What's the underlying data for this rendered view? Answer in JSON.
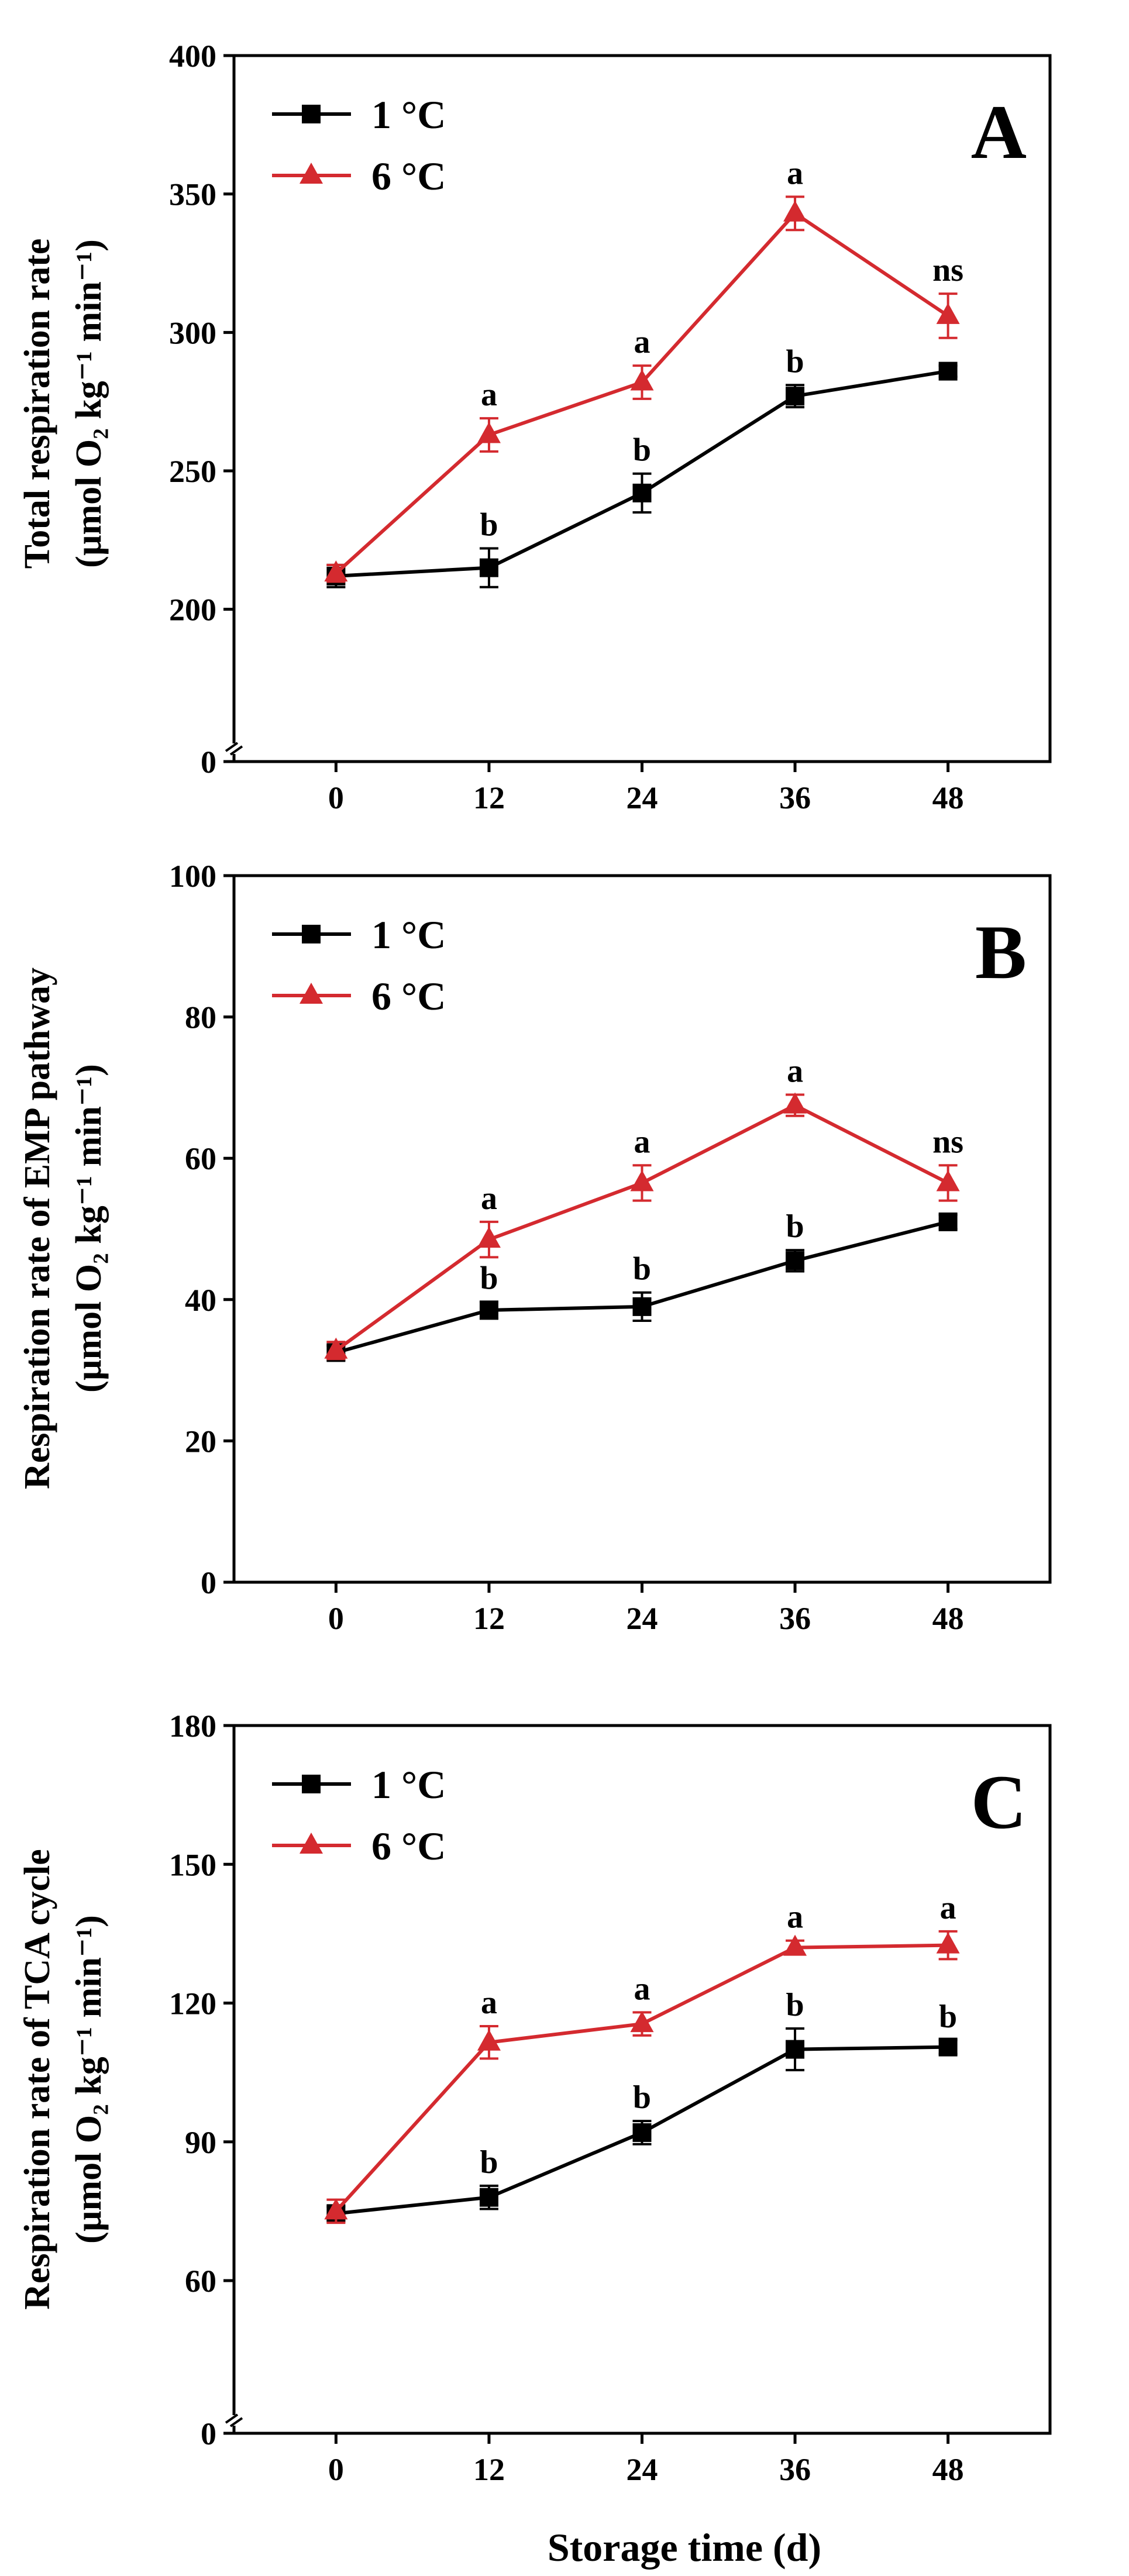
{
  "xlabel": "Storage time (d)",
  "colors": {
    "series_1C": "#000000",
    "series_6C": "#d42a2f",
    "axis": "#000000"
  },
  "chart_data": [
    {
      "type": "line",
      "panel": "A",
      "ylabel_line1": "Total respiration rate",
      "ylabel_line2": "(µmol O₂ kg⁻¹ min⁻¹)",
      "x": [
        0,
        12,
        24,
        36,
        48
      ],
      "x_ticks": [
        "0",
        "12",
        "24",
        "36",
        "48"
      ],
      "ylim": [
        0,
        400
      ],
      "y_ticks": [
        "0",
        "200",
        "250",
        "300",
        "350",
        "400"
      ],
      "y_tick_values": [
        0,
        200,
        250,
        300,
        350,
        400
      ],
      "axis_break": true,
      "series": [
        {
          "name": "1 °C",
          "marker": "square",
          "values": [
            212,
            215,
            242,
            277,
            286
          ],
          "errors": [
            4,
            7,
            7,
            4,
            2
          ]
        },
        {
          "name": "6 °C",
          "marker": "triangle",
          "values": [
            213,
            263,
            282,
            343,
            306
          ],
          "errors": [
            3,
            6,
            6,
            6,
            8
          ]
        }
      ],
      "annotations": [
        {
          "x": 12,
          "series": "1 °C",
          "text": "b"
        },
        {
          "x": 24,
          "series": "1 °C",
          "text": "b"
        },
        {
          "x": 36,
          "series": "1 °C",
          "text": "b"
        },
        {
          "x": 12,
          "series": "6 °C",
          "text": "a"
        },
        {
          "x": 24,
          "series": "6 °C",
          "text": "a"
        },
        {
          "x": 36,
          "series": "6 °C",
          "text": "a"
        },
        {
          "x": 48,
          "series": "6 °C",
          "text": "ns"
        }
      ]
    },
    {
      "type": "line",
      "panel": "B",
      "ylabel_line1": "Respiration rate of EMP pathway",
      "ylabel_line2": "(µmol O₂ kg⁻¹ min⁻¹)",
      "x": [
        0,
        12,
        24,
        36,
        48
      ],
      "x_ticks": [
        "0",
        "12",
        "24",
        "36",
        "48"
      ],
      "ylim": [
        0,
        100
      ],
      "y_ticks": [
        "0",
        "20",
        "40",
        "60",
        "80",
        "100"
      ],
      "y_tick_values": [
        0,
        20,
        40,
        60,
        80,
        100
      ],
      "axis_break": false,
      "series": [
        {
          "name": "1 °C",
          "marker": "square",
          "values": [
            32.5,
            38.5,
            39,
            45.5,
            51
          ],
          "errors": [
            1,
            1.2,
            2,
            1.5,
            1
          ]
        },
        {
          "name": "6 °C",
          "marker": "triangle",
          "values": [
            32.8,
            48.5,
            56.5,
            67.5,
            56.5
          ],
          "errors": [
            1.2,
            2.5,
            2.5,
            1.5,
            2.5
          ]
        }
      ],
      "annotations": [
        {
          "x": 12,
          "series": "1 °C",
          "text": "b"
        },
        {
          "x": 24,
          "series": "1 °C",
          "text": "b"
        },
        {
          "x": 36,
          "series": "1 °C",
          "text": "b"
        },
        {
          "x": 12,
          "series": "6 °C",
          "text": "a"
        },
        {
          "x": 24,
          "series": "6 °C",
          "text": "a"
        },
        {
          "x": 36,
          "series": "6 °C",
          "text": "a"
        },
        {
          "x": 48,
          "series": "6 °C",
          "text": "ns"
        }
      ]
    },
    {
      "type": "line",
      "panel": "C",
      "ylabel_line1": "Respiration rate of TCA cycle",
      "ylabel_line2": "(µmol O₂ kg⁻¹ min⁻¹)",
      "x": [
        0,
        12,
        24,
        36,
        48
      ],
      "x_ticks": [
        "0",
        "12",
        "24",
        "36",
        "48"
      ],
      "ylim": [
        0,
        180
      ],
      "y_ticks": [
        "0",
        "60",
        "90",
        "120",
        "150",
        "180"
      ],
      "y_tick_values": [
        0,
        60,
        90,
        120,
        150,
        180
      ],
      "axis_break": true,
      "series": [
        {
          "name": "1 °C",
          "marker": "square",
          "values": [
            74.5,
            78,
            92,
            110,
            110.5
          ],
          "errors": [
            1.5,
            2.5,
            2.5,
            4.5,
            1.5
          ]
        },
        {
          "name": "6 °C",
          "marker": "triangle",
          "values": [
            75,
            111.5,
            115.5,
            132,
            132.5
          ],
          "errors": [
            2.5,
            3.5,
            2.5,
            1.5,
            3
          ]
        }
      ],
      "annotations": [
        {
          "x": 12,
          "series": "1 °C",
          "text": "b"
        },
        {
          "x": 24,
          "series": "1 °C",
          "text": "b"
        },
        {
          "x": 36,
          "series": "1 °C",
          "text": "b"
        },
        {
          "x": 48,
          "series": "1 °C",
          "text": "b"
        },
        {
          "x": 12,
          "series": "6 °C",
          "text": "a"
        },
        {
          "x": 24,
          "series": "6 °C",
          "text": "a"
        },
        {
          "x": 36,
          "series": "6 °C",
          "text": "a"
        },
        {
          "x": 48,
          "series": "6 °C",
          "text": "a"
        }
      ]
    }
  ]
}
